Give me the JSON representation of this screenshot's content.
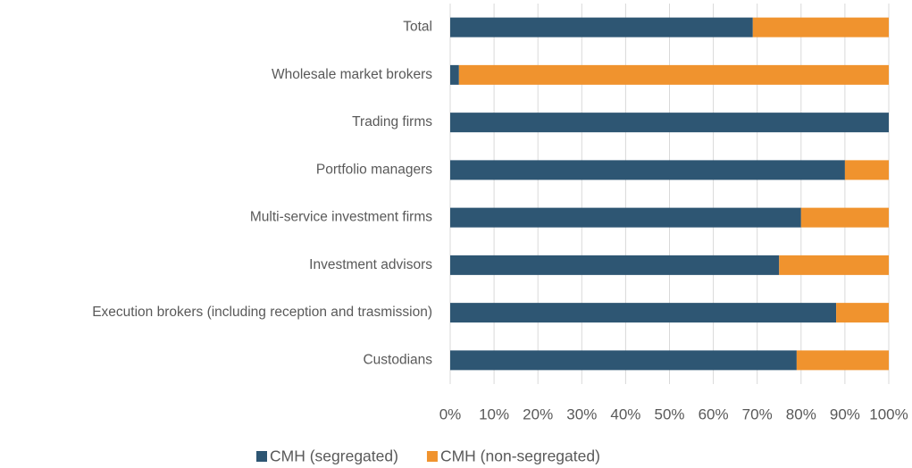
{
  "chart_data": {
    "type": "bar",
    "orientation": "horizontal",
    "stacked": true,
    "categories": [
      "Total",
      "Wholesale market brokers",
      "Trading firms",
      "Portfolio managers",
      "Multi-service investment firms",
      "Investment advisors",
      "Execution brokers (including reception and trasmission)",
      "Custodians"
    ],
    "series": [
      {
        "name": "CMH (segregated)",
        "color": "#2e5673",
        "values": [
          69,
          2,
          100,
          90,
          80,
          75,
          88,
          79
        ]
      },
      {
        "name": "CMH (non-segregated)",
        "color": "#f0932e",
        "values": [
          31,
          98,
          0,
          10,
          20,
          25,
          12,
          21
        ]
      }
    ],
    "xlim": [
      0,
      100
    ],
    "xticks": [
      {
        "value": 0,
        "label": "0%"
      },
      {
        "value": 10,
        "label": "10%"
      },
      {
        "value": 20,
        "label": "20%"
      },
      {
        "value": 30,
        "label": "30%"
      },
      {
        "value": 40,
        "label": "40%"
      },
      {
        "value": 50,
        "label": "50%"
      },
      {
        "value": 60,
        "label": "60%"
      },
      {
        "value": 70,
        "label": "70%"
      },
      {
        "value": 80,
        "label": "80%"
      },
      {
        "value": 90,
        "label": "90%"
      },
      {
        "value": 100,
        "label": "100%"
      }
    ],
    "grid": true,
    "legend": "bottom"
  }
}
